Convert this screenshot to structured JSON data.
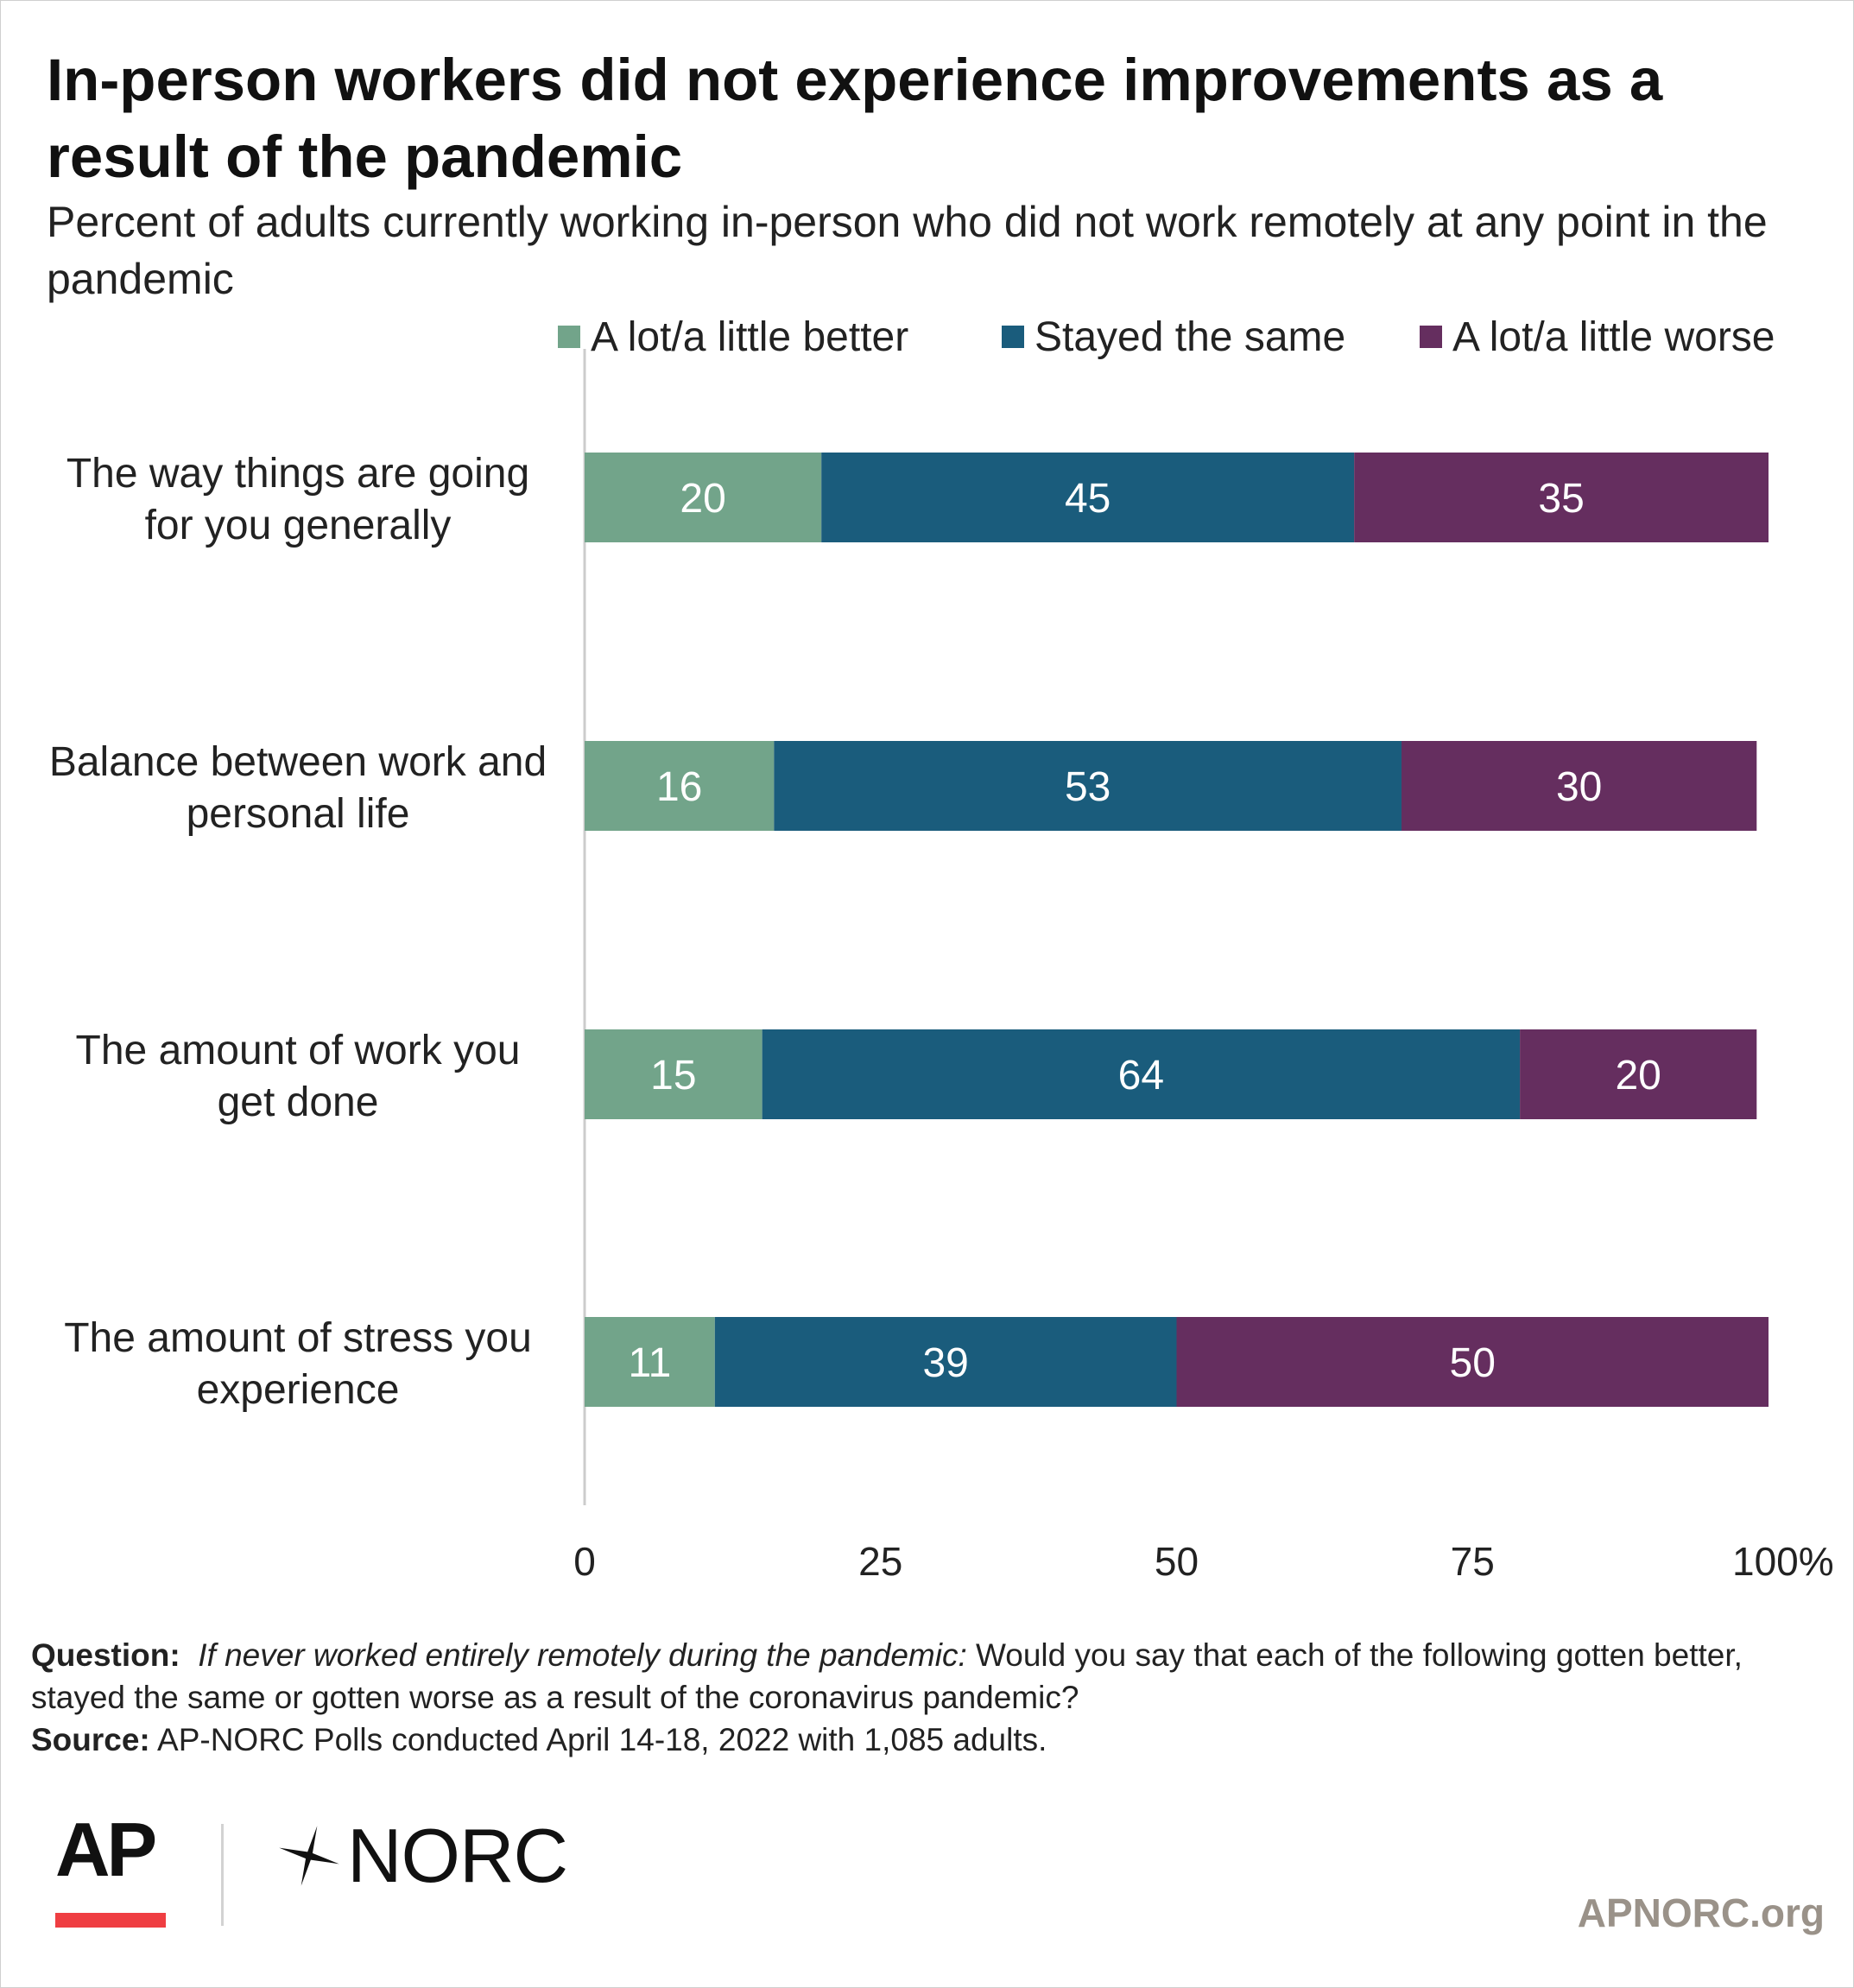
{
  "header": {
    "title": "In-person workers did not experience improvements as a result of the pandemic",
    "subtitle": "Percent of adults currently working in-person who did not work remotely at any point in the pandemic"
  },
  "colors": {
    "better": "#72a48a",
    "same": "#1a5c7c",
    "worse": "#652e5f",
    "axis_line": "#cccccc",
    "text": "#222222",
    "bar_label": "#ffffff",
    "ap_red": "#ef3e42"
  },
  "legend": [
    {
      "label": "A lot/a little better",
      "color": "#72a48a"
    },
    {
      "label": "Stayed the same",
      "color": "#1a5c7c"
    },
    {
      "label": "A lot/a little worse",
      "color": "#652e5f"
    }
  ],
  "chart_data": {
    "type": "bar",
    "orientation": "horizontal",
    "stacked": true,
    "categories": [
      "The way things are going for you generally",
      "Balance between work and personal life",
      "The amount of work you get done",
      "The amount of stress you experience"
    ],
    "category_lines": [
      [
        "The way things are going",
        "for you generally"
      ],
      [
        "Balance between work and",
        "personal life"
      ],
      [
        "The amount of work you",
        "get done"
      ],
      [
        "The amount of stress you",
        "experience"
      ]
    ],
    "series": [
      {
        "name": "A lot/a little better",
        "values": [
          20,
          16,
          15,
          11
        ]
      },
      {
        "name": "Stayed the same",
        "values": [
          45,
          53,
          64,
          39
        ]
      },
      {
        "name": "A lot/a little worse",
        "values": [
          35,
          30,
          20,
          50
        ]
      }
    ],
    "xlim": [
      0,
      100
    ],
    "xticks": [
      {
        "value": 0,
        "label": "0"
      },
      {
        "value": 25,
        "label": "25"
      },
      {
        "value": 50,
        "label": "50"
      },
      {
        "value": 75,
        "label": "75"
      },
      {
        "value": 100,
        "label": "100%"
      }
    ],
    "data_labels": true,
    "grid": false,
    "legend_position": "top"
  },
  "notes": {
    "question_label": "Question:",
    "question_condition": "If never worked entirely remotely during the pandemic:",
    "question_text": "Would you say that each of the following gotten better, stayed the same or gotten worse as a result of the coronavirus pandemic?",
    "source_label": "Source:",
    "source_text": "AP-NORC Polls conducted April 14-18, 2022 with 1,085 adults."
  },
  "branding": {
    "ap_logo": "AP",
    "norc_logo": "NORC",
    "norc_mark": "✶",
    "site": "APNORC.org"
  }
}
